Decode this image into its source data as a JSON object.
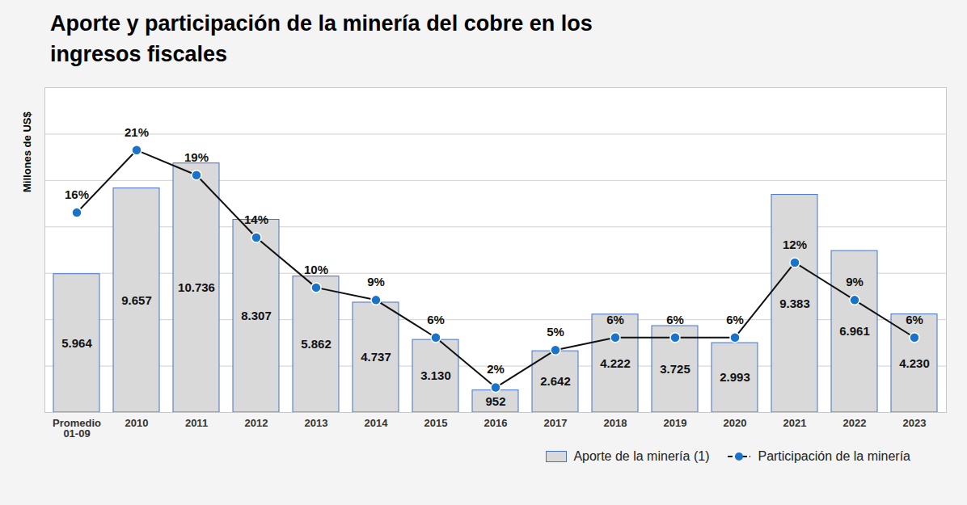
{
  "chart_data": {
    "type": "bar",
    "title": "Aporte y participación de la minería del cobre en los ingresos fiscales",
    "y_label": "Millones de US$",
    "categories": [
      "Promedio\n01-09",
      "2010",
      "2011",
      "2012",
      "2013",
      "2014",
      "2015",
      "2016",
      "2017",
      "2018",
      "2019",
      "2020",
      "2021",
      "2022",
      "2023"
    ],
    "series": [
      {
        "name": "Aporte de la minería (1)",
        "type": "bar",
        "color": "#d9d9d9",
        "values": [
          5964,
          9657,
          10736,
          8307,
          5862,
          4737,
          3130,
          952,
          2642,
          4222,
          3725,
          2993,
          9383,
          6961,
          4230
        ],
        "value_labels": [
          "5.964",
          "9.657",
          "10.736",
          "8.307",
          "5.862",
          "4.737",
          "3.130",
          "952",
          "2.642",
          "4.222",
          "3.725",
          "2.993",
          "9.383",
          "6.961",
          "4.230"
        ]
      },
      {
        "name": "Participación de la minería",
        "type": "line",
        "axis": "y2",
        "color": "#1a73c8",
        "marker": "circle",
        "values": [
          16,
          21,
          19,
          14,
          10,
          9,
          6,
          2,
          5,
          6,
          6,
          6,
          12,
          9,
          6
        ],
        "value_labels": [
          "16%",
          "21%",
          "19%",
          "14%",
          "10%",
          "9%",
          "6%",
          "2%",
          "5%",
          "6%",
          "6%",
          "6%",
          "12%",
          "9%",
          "6%"
        ]
      }
    ],
    "ylim": [
      0,
      14000
    ],
    "yticks": [
      0,
      2000,
      4000,
      6000,
      8000,
      10000,
      12000,
      14000
    ],
    "y2lim": [
      0,
      26
    ],
    "grid": true,
    "data_labels": true,
    "tick_labels": "x",
    "legend": "bottom-right"
  }
}
